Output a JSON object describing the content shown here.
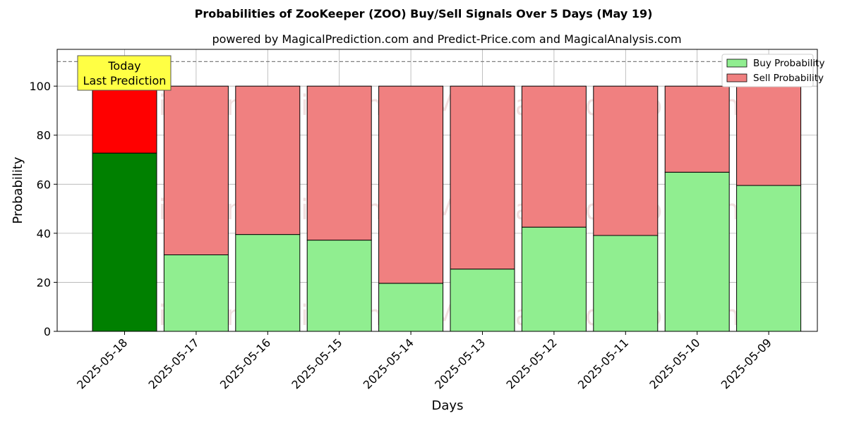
{
  "chart_data": {
    "type": "bar",
    "stacked": true,
    "title": "Probabilities of ZooKeeper (ZOO) Buy/Sell Signals Over 5 Days (May 19)",
    "subtitle": "powered by MagicalPrediction.com and Predict-Price.com and MagicalAnalysis.com",
    "xlabel": "Days",
    "ylabel": "Probability",
    "ylim": [
      0,
      115
    ],
    "yticks": [
      0,
      20,
      40,
      60,
      80,
      100
    ],
    "grid": true,
    "legend_position": "top-right",
    "categories": [
      "2025-05-18",
      "2025-05-17",
      "2025-05-16",
      "2025-05-15",
      "2025-05-14",
      "2025-05-13",
      "2025-05-12",
      "2025-05-11",
      "2025-05-10",
      "2025-05-09"
    ],
    "series": [
      {
        "name": "Buy Probability",
        "color": "#90ee90",
        "highlight_color": "#008000",
        "values": [
          72.7,
          31.2,
          39.5,
          37.2,
          19.6,
          25.4,
          42.5,
          39.1,
          64.9,
          59.5
        ]
      },
      {
        "name": "Sell Probability",
        "color": "#f08080",
        "highlight_color": "#ff0000",
        "values": [
          27.3,
          68.8,
          60.5,
          62.8,
          80.4,
          74.6,
          57.5,
          60.9,
          35.1,
          40.5
        ]
      }
    ],
    "reference_line": {
      "y": 110,
      "style": "dashed"
    },
    "annotation": {
      "text_line1": "Today",
      "text_line2": "Last Prediction",
      "category": "2025-05-18"
    },
    "watermarks": [
      "MagicalAnalysis.com",
      "MagicalPrediction.com"
    ]
  }
}
